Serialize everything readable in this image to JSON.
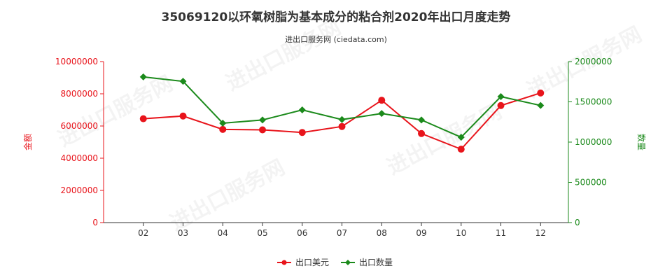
{
  "chart_data": {
    "type": "line",
    "title": "35069120以环氧树脂为基本成分的粘合剂2020年出口月度走势",
    "subtitle": "进出口服务网 (ciedata.com)",
    "categories": [
      "02",
      "03",
      "04",
      "05",
      "06",
      "07",
      "08",
      "09",
      "10",
      "11",
      "12"
    ],
    "y_left": {
      "label": "金额",
      "range": [
        0,
        10000000
      ],
      "ticks": [
        "0",
        "2000000",
        "4000000",
        "6000000",
        "8000000",
        "10000000"
      ],
      "color": "#e8141b"
    },
    "y_right": {
      "label": "数量",
      "range": [
        0,
        2000000
      ],
      "ticks": [
        "0",
        "500000",
        "1000000",
        "1500000",
        "2000000"
      ],
      "color": "#1b8a1b"
    },
    "series": [
      {
        "name": "出口美元",
        "axis": "left",
        "color": "#e8141b",
        "marker": "circle",
        "values": [
          6450000,
          6620000,
          5790000,
          5760000,
          5600000,
          5970000,
          7600000,
          5530000,
          4560000,
          7270000,
          8050000
        ]
      },
      {
        "name": "出口数量",
        "axis": "right",
        "color": "#1b8a1b",
        "marker": "diamond",
        "values": [
          1810000,
          1755000,
          1235000,
          1275000,
          1400000,
          1280000,
          1355000,
          1275000,
          1060000,
          1565000,
          1455000
        ]
      }
    ],
    "legend_position": "bottom-center",
    "grid": false,
    "watermark": "进出口服务网"
  }
}
